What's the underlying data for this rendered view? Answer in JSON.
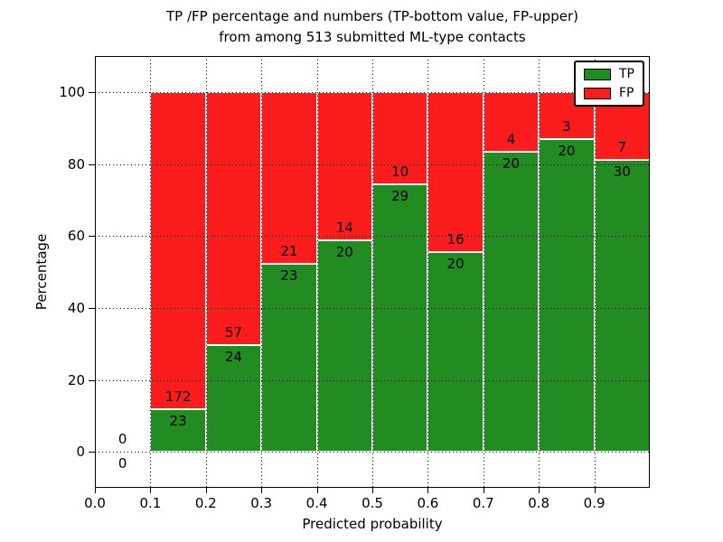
{
  "title": {
    "line1": "TP /FP percentage and numbers (TP-bottom value, FP-upper)",
    "line2": "from among 513 submitted ML-type contacts"
  },
  "axes": {
    "xlabel": "Predicted probability",
    "ylabel": "Percentage",
    "x_ticks": [
      "0.0",
      "0.1",
      "0.2",
      "0.3",
      "0.4",
      "0.5",
      "0.6",
      "0.7",
      "0.8",
      "0.9"
    ],
    "y_ticks": [
      "0",
      "20",
      "40",
      "60",
      "80",
      "100"
    ],
    "y_tick_values": [
      0,
      20,
      40,
      60,
      80,
      100
    ],
    "xlim": [
      0.0,
      1.0
    ],
    "ylim": [
      -10,
      110
    ],
    "grid": "dotted"
  },
  "legend": {
    "position": "upper right",
    "items": [
      {
        "label": "TP",
        "color": "#228b22"
      },
      {
        "label": "FP",
        "color": "#fb1d1d"
      }
    ]
  },
  "chart_data": {
    "type": "bar",
    "subtype": "stacked-normalized-percent",
    "title": "TP /FP percentage and numbers (TP-bottom value, FP-upper) from among 513 submitted ML-type contacts",
    "xlabel": "Predicted probability",
    "ylabel": "Percentage",
    "xlim": [
      0.0,
      1.0
    ],
    "ylim": [
      -10,
      110
    ],
    "total_contacts": 513,
    "bin_width": 0.1,
    "x_bins": [
      "0.0-0.1",
      "0.1-0.2",
      "0.2-0.3",
      "0.3-0.4",
      "0.4-0.5",
      "0.5-0.6",
      "0.6-0.7",
      "0.7-0.8",
      "0.8-0.9",
      "0.9-1.0"
    ],
    "series": [
      {
        "name": "TP",
        "color": "#228b22",
        "counts": [
          0,
          23,
          24,
          23,
          20,
          29,
          20,
          20,
          20,
          30
        ]
      },
      {
        "name": "FP",
        "color": "#fb1d1d",
        "counts": [
          0,
          172,
          57,
          21,
          14,
          10,
          16,
          4,
          3,
          7
        ]
      }
    ],
    "legend_entries": [
      "TP",
      "FP"
    ]
  }
}
